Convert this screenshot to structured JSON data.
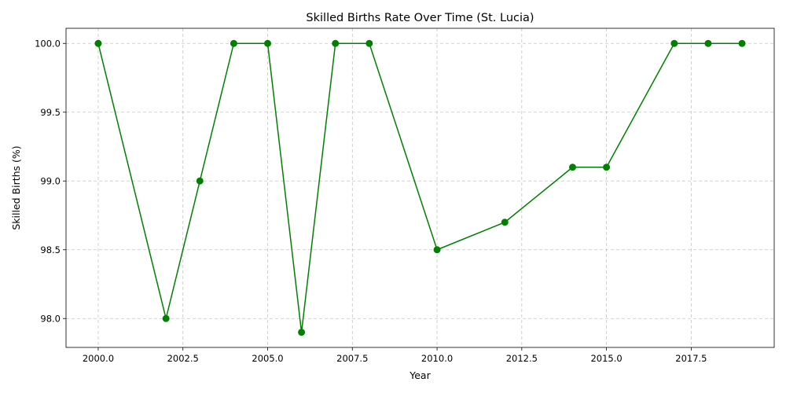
{
  "chart_data": {
    "type": "line",
    "title": "Skilled Births Rate Over Time (St. Lucia)",
    "xlabel": "Year",
    "ylabel": "Skilled Births (%)",
    "xlim": [
      1999.05,
      2019.95
    ],
    "ylim": [
      97.79,
      100.11
    ],
    "xticks": [
      2000.0,
      2002.5,
      2005.0,
      2007.5,
      2010.0,
      2012.5,
      2015.0,
      2017.5
    ],
    "xtick_labels": [
      "2000.0",
      "2002.5",
      "2005.0",
      "2007.5",
      "2010.0",
      "2012.5",
      "2015.0",
      "2017.5"
    ],
    "yticks": [
      98.0,
      98.5,
      99.0,
      99.5,
      100.0
    ],
    "ytick_labels": [
      "98.0",
      "98.5",
      "99.0",
      "99.5",
      "100.0"
    ],
    "grid": true,
    "series": [
      {
        "color": "#008000",
        "marker": "circle",
        "x": [
          2000,
          2002,
          2003,
          2004,
          2005,
          2006,
          2007,
          2008,
          2010,
          2012,
          2014,
          2015,
          2017,
          2018,
          2019
        ],
        "y": [
          100.0,
          98.0,
          99.0,
          100.0,
          100.0,
          97.9,
          100.0,
          100.0,
          98.5,
          98.7,
          99.1,
          99.1,
          100.0,
          100.0,
          100.0
        ]
      }
    ]
  }
}
